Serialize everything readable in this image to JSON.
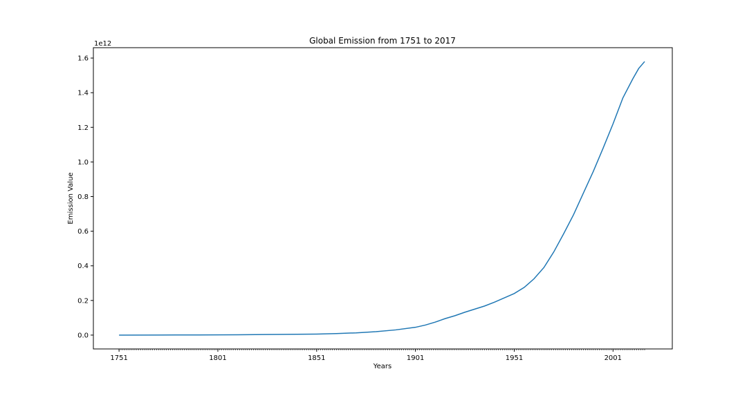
{
  "chart_data": {
    "type": "line",
    "title": "Global Emission from 1751 to 2017",
    "xlabel": "Years",
    "ylabel": "Emission Value",
    "y_offset_label": "1e12",
    "x_range": [
      1738,
      2031
    ],
    "ylim": [
      -0.08,
      1.66
    ],
    "y_scale_factor": 1000000000000.0,
    "x_ticks": [
      1751,
      1801,
      1851,
      1901,
      1951,
      2001
    ],
    "y_ticks": [
      0.0,
      0.2,
      0.4,
      0.6,
      0.8,
      1.0,
      1.2,
      1.4,
      1.6
    ],
    "y_tick_labels": [
      "0.0",
      "0.2",
      "0.4",
      "0.6",
      "0.8",
      "1.0",
      "1.2",
      "1.4",
      "1.6"
    ],
    "x_minor_ticks": {
      "start": 1751,
      "end": 2017,
      "step": 1
    },
    "grid": false,
    "line_color": "#1f77b4",
    "series": [
      {
        "x": [
          1751,
          1771,
          1791,
          1811,
          1831,
          1851,
          1861,
          1871,
          1881,
          1891,
          1901,
          1906,
          1911,
          1916,
          1921,
          1926,
          1931,
          1936,
          1941,
          1946,
          1951,
          1956,
          1961,
          1966,
          1971,
          1976,
          1981,
          1986,
          1991,
          1996,
          2001,
          2006,
          2011,
          2014,
          2017
        ],
        "y": [
          0.0,
          0.0005,
          0.001,
          0.002,
          0.004,
          0.006,
          0.009,
          0.013,
          0.02,
          0.03,
          0.045,
          0.058,
          0.075,
          0.095,
          0.112,
          0.132,
          0.15,
          0.168,
          0.19,
          0.215,
          0.24,
          0.275,
          0.325,
          0.39,
          0.48,
          0.585,
          0.695,
          0.82,
          0.945,
          1.08,
          1.22,
          1.37,
          1.48,
          1.54,
          1.58
        ]
      }
    ]
  }
}
